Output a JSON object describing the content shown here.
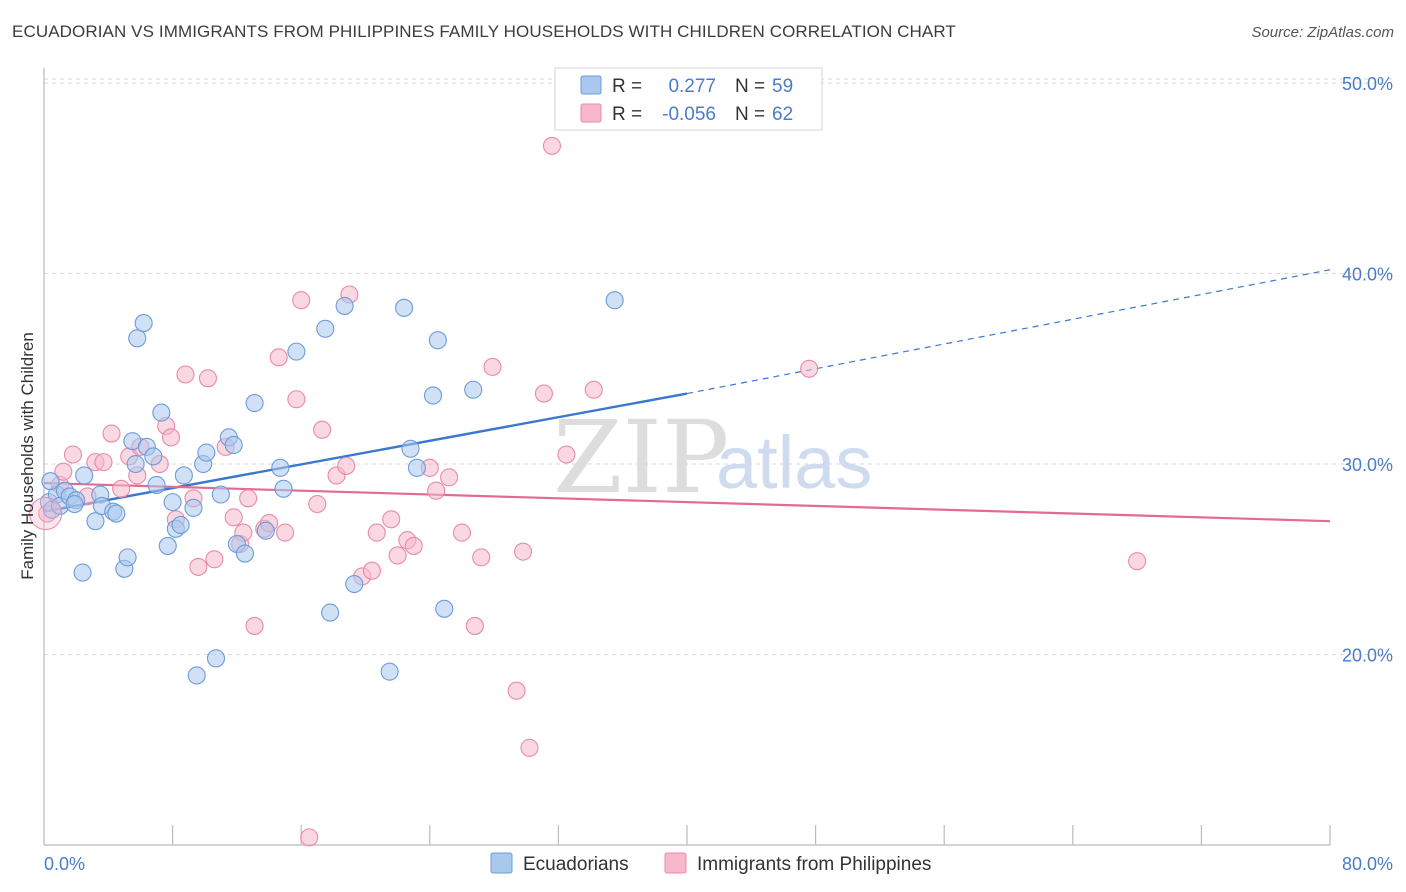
{
  "header": {
    "title": "ECUADORIAN VS IMMIGRANTS FROM PHILIPPINES FAMILY HOUSEHOLDS WITH CHILDREN CORRELATION CHART",
    "source": "Source: ZipAtlas.com"
  },
  "watermark": {
    "zip": "ZIP",
    "atlas": "atlas"
  },
  "colors": {
    "blue_fill": "#a9c8ee",
    "blue_stroke": "#6f9bd8",
    "blue_line": "#3a78d0",
    "pink_fill": "#f6b8ca",
    "pink_stroke": "#e98aa9",
    "pink_line": "#e36a93",
    "tick_label": "#4a7cc9",
    "grid": "#d9d9d9"
  },
  "legend": {
    "row1": {
      "r_label": "R =",
      "r_value": "0.277",
      "n_label": "N =",
      "n_value": "59"
    },
    "row2": {
      "r_label": "R =",
      "r_value": "-0.056",
      "n_label": "N =",
      "n_value": "62"
    }
  },
  "bottom_legend": {
    "series1": "Ecuadorians",
    "series2": "Immigrants from Philippines"
  },
  "chart_data": {
    "type": "scatter",
    "title": "ECUADORIAN VS IMMIGRANTS FROM PHILIPPINES FAMILY HOUSEHOLDS WITH CHILDREN CORRELATION CHART",
    "xlabel": "",
    "ylabel": "Family Households with Children",
    "xlim": [
      0,
      80
    ],
    "ylim": [
      10,
      51
    ],
    "x_tick_labels": [
      "0.0%",
      "80.0%"
    ],
    "y_ticks": [
      20,
      30,
      40,
      50
    ],
    "y_tick_labels": [
      "20.0%",
      "30.0%",
      "40.0%",
      "50.0%"
    ],
    "grid": true,
    "legend_position": "top-center",
    "series": [
      {
        "name": "Ecuadorians",
        "R": 0.277,
        "N": 59,
        "trend": {
          "x0": 0,
          "y0": 27.5,
          "x1": 40,
          "y1": 33.7,
          "dashed_to_x": 80,
          "dashed_to_y": 40.2
        },
        "points": [
          [
            0.3,
            28.0
          ],
          [
            0.5,
            27.6
          ],
          [
            0.8,
            28.4
          ],
          [
            1.0,
            27.8
          ],
          [
            1.3,
            28.6
          ],
          [
            1.6,
            28.3
          ],
          [
            2.0,
            28.1
          ],
          [
            2.5,
            29.4
          ],
          [
            3.2,
            27.0
          ],
          [
            3.5,
            28.4
          ],
          [
            2.4,
            24.3
          ],
          [
            3.6,
            27.8
          ],
          [
            4.3,
            27.5
          ],
          [
            4.5,
            27.4
          ],
          [
            5.0,
            24.5
          ],
          [
            5.2,
            25.1
          ],
          [
            5.5,
            31.2
          ],
          [
            5.7,
            30.0
          ],
          [
            5.8,
            36.6
          ],
          [
            6.2,
            37.4
          ],
          [
            6.4,
            30.9
          ],
          [
            6.8,
            30.4
          ],
          [
            7.0,
            28.9
          ],
          [
            7.3,
            32.7
          ],
          [
            7.7,
            25.7
          ],
          [
            8.0,
            28.0
          ],
          [
            8.2,
            26.6
          ],
          [
            8.5,
            26.8
          ],
          [
            8.7,
            29.4
          ],
          [
            9.3,
            27.7
          ],
          [
            9.5,
            18.9
          ],
          [
            9.9,
            30.0
          ],
          [
            10.1,
            30.6
          ],
          [
            10.7,
            19.8
          ],
          [
            11.0,
            28.4
          ],
          [
            11.5,
            31.4
          ],
          [
            11.8,
            31.0
          ],
          [
            12.0,
            25.8
          ],
          [
            12.5,
            25.3
          ],
          [
            13.1,
            33.2
          ],
          [
            13.8,
            26.5
          ],
          [
            14.7,
            29.8
          ],
          [
            14.9,
            28.7
          ],
          [
            15.7,
            35.9
          ],
          [
            17.5,
            37.1
          ],
          [
            17.8,
            22.2
          ],
          [
            18.7,
            38.3
          ],
          [
            19.3,
            23.7
          ],
          [
            21.5,
            19.1
          ],
          [
            22.4,
            38.2
          ],
          [
            22.8,
            30.8
          ],
          [
            23.2,
            29.8
          ],
          [
            24.2,
            33.6
          ],
          [
            24.5,
            36.5
          ],
          [
            24.9,
            22.4
          ],
          [
            26.7,
            33.9
          ],
          [
            35.5,
            38.6
          ],
          [
            0.4,
            29.1
          ],
          [
            1.9,
            27.9
          ]
        ]
      },
      {
        "name": "Immigrants from Philippines",
        "R": -0.056,
        "N": 62,
        "trend": {
          "x0": 0,
          "y0": 29.0,
          "x1": 80,
          "y1": 27.0
        },
        "points": [
          [
            0.2,
            27.4
          ],
          [
            1.0,
            28.9
          ],
          [
            1.2,
            29.6
          ],
          [
            1.8,
            30.5
          ],
          [
            2.7,
            28.3
          ],
          [
            3.2,
            30.1
          ],
          [
            3.7,
            30.1
          ],
          [
            4.2,
            31.6
          ],
          [
            4.8,
            28.7
          ],
          [
            5.3,
            30.4
          ],
          [
            5.8,
            29.4
          ],
          [
            6.0,
            30.9
          ],
          [
            7.2,
            30.0
          ],
          [
            7.6,
            32.0
          ],
          [
            7.9,
            31.4
          ],
          [
            8.2,
            27.1
          ],
          [
            8.8,
            34.7
          ],
          [
            9.3,
            28.2
          ],
          [
            9.6,
            24.6
          ],
          [
            10.2,
            34.5
          ],
          [
            10.6,
            25.0
          ],
          [
            11.3,
            30.9
          ],
          [
            11.8,
            27.2
          ],
          [
            12.2,
            25.8
          ],
          [
            12.4,
            26.4
          ],
          [
            12.7,
            28.2
          ],
          [
            13.1,
            21.5
          ],
          [
            13.7,
            26.6
          ],
          [
            14.0,
            26.9
          ],
          [
            14.6,
            35.6
          ],
          [
            15.0,
            26.4
          ],
          [
            15.7,
            33.4
          ],
          [
            16.0,
            38.6
          ],
          [
            16.5,
            10.4
          ],
          [
            17.0,
            27.9
          ],
          [
            17.3,
            31.8
          ],
          [
            18.2,
            29.4
          ],
          [
            18.8,
            29.9
          ],
          [
            19.0,
            38.9
          ],
          [
            19.8,
            24.1
          ],
          [
            20.4,
            24.4
          ],
          [
            20.7,
            26.4
          ],
          [
            21.6,
            27.1
          ],
          [
            22.0,
            25.2
          ],
          [
            22.6,
            26.0
          ],
          [
            23.0,
            25.7
          ],
          [
            24.0,
            29.8
          ],
          [
            24.4,
            28.6
          ],
          [
            25.2,
            29.3
          ],
          [
            26.0,
            26.4
          ],
          [
            26.8,
            21.5
          ],
          [
            27.2,
            25.1
          ],
          [
            27.9,
            35.1
          ],
          [
            29.4,
            18.1
          ],
          [
            29.8,
            25.4
          ],
          [
            30.2,
            15.1
          ],
          [
            31.1,
            33.7
          ],
          [
            31.6,
            46.7
          ],
          [
            32.5,
            30.5
          ],
          [
            34.2,
            33.9
          ],
          [
            47.6,
            35.0
          ],
          [
            68.0,
            24.9
          ]
        ]
      }
    ]
  }
}
